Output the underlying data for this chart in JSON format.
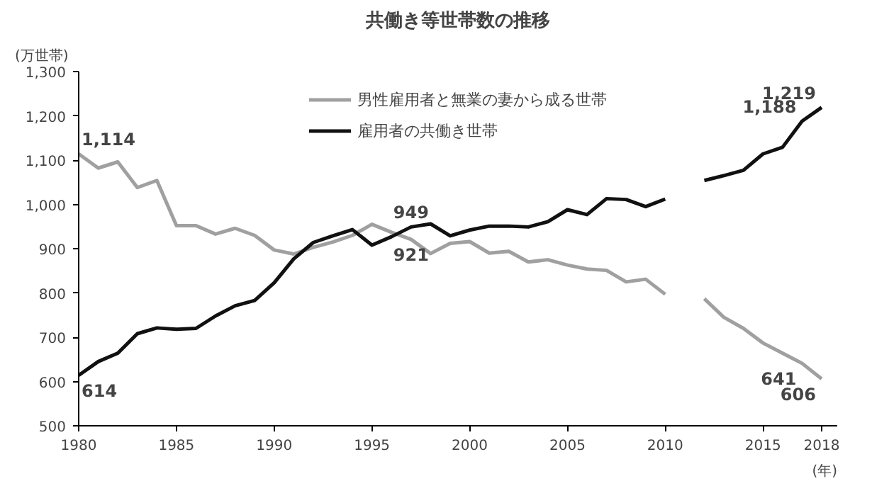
{
  "chart_data": {
    "type": "line",
    "title": "共働き等世帯数の推移",
    "ylabel": "(万世帯)",
    "xlabel": "(年)",
    "xlim": [
      1980,
      2018.8
    ],
    "xticks": [
      1980,
      1985,
      1990,
      1995,
      2000,
      2005,
      2010,
      2015,
      2018
    ],
    "ylim": [
      500,
      1300
    ],
    "yticks": [
      500,
      600,
      700,
      800,
      900,
      {
        "value": 1000,
        "label": "1,000"
      },
      {
        "value": 1100,
        "label": "1,100"
      },
      {
        "value": 1200,
        "label": "1,200"
      },
      {
        "value": 1300,
        "label": "1,300"
      }
    ],
    "grid": false,
    "legend": "top",
    "marker": "none",
    "series": [
      {
        "name": "男性雇用者と無業の妻から成る世帯",
        "color": "#a0a0a0",
        "x": [
          1980,
          1981,
          1982,
          1983,
          1984,
          1985,
          1986,
          1987,
          1988,
          1989,
          1990,
          1991,
          1992,
          1993,
          1994,
          1995,
          1996,
          1997,
          1998,
          1999,
          2000,
          2001,
          2002,
          2003,
          2004,
          2005,
          2006,
          2007,
          2008,
          2009,
          2010,
          2011,
          2012,
          2013,
          2014,
          2015,
          2016,
          2017,
          2018
        ],
        "values": [
          1114,
          1082,
          1096,
          1038,
          1054,
          952,
          952,
          933,
          946,
          930,
          897,
          888,
          903,
          915,
          930,
          955,
          937,
          921,
          889,
          912,
          916,
          890,
          894,
          870,
          875,
          863,
          854,
          851,
          825,
          831,
          797,
          null,
          787,
          745,
          720,
          687,
          664,
          641,
          606
        ]
      },
      {
        "name": "雇用者の共働き世帯",
        "color": "#111111",
        "x": [
          1980,
          1981,
          1982,
          1983,
          1984,
          1985,
          1986,
          1987,
          1988,
          1989,
          1990,
          1991,
          1992,
          1993,
          1994,
          1995,
          1996,
          1997,
          1998,
          1999,
          2000,
          2001,
          2002,
          2003,
          2004,
          2005,
          2006,
          2007,
          2008,
          2009,
          2010,
          2011,
          2012,
          2013,
          2014,
          2015,
          2016,
          2017,
          2018
        ],
        "values": [
          614,
          645,
          664,
          708,
          721,
          718,
          720,
          748,
          771,
          783,
          823,
          877,
          914,
          929,
          943,
          908,
          927,
          949,
          956,
          929,
          942,
          951,
          951,
          949,
          961,
          988,
          977,
          1013,
          1011,
          995,
          1012,
          null,
          1054,
          1065,
          1077,
          1114,
          1129,
          1188,
          1219
        ]
      }
    ],
    "annotations": [
      {
        "text": "1,114",
        "x": 1980,
        "y": 1114
      },
      {
        "text": "614",
        "x": 1980,
        "y": 614
      },
      {
        "text": "949",
        "x": 1997,
        "y": 949
      },
      {
        "text": "921",
        "x": 1997,
        "y": 921
      },
      {
        "text": "1,188",
        "x": 2017,
        "y": 1188
      },
      {
        "text": "1,219",
        "x": 2018,
        "y": 1219
      },
      {
        "text": "641",
        "x": 2017,
        "y": 641
      },
      {
        "text": "606",
        "x": 2018,
        "y": 606
      }
    ]
  }
}
